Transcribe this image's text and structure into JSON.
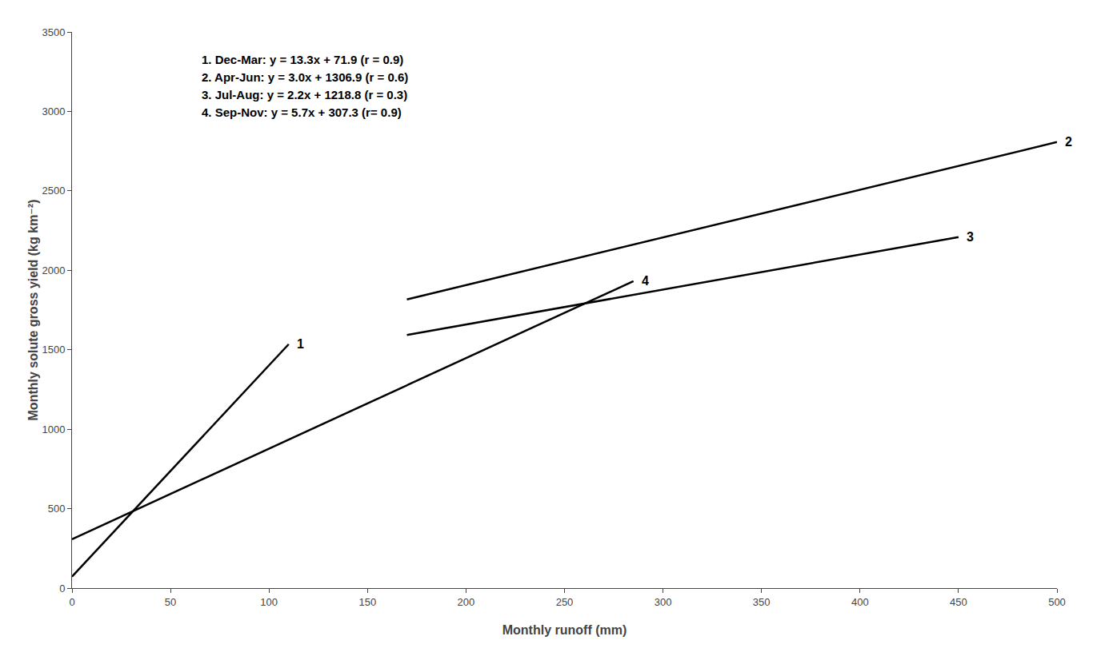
{
  "chart_data": {
    "type": "line",
    "xlabel": "Monthly runoff (mm)",
    "ylabel": "Monthly solute gross yield (kg km⁻²)",
    "series": [
      {
        "name": "1",
        "color": "#000000",
        "x": [
          0,
          110
        ],
        "values": [
          71.9,
          1534.9
        ]
      },
      {
        "name": "2",
        "color": "#000000",
        "x": [
          170,
          500
        ],
        "values": [
          1816.9,
          2806.9
        ]
      },
      {
        "name": "3",
        "color": "#000000",
        "x": [
          170,
          450
        ],
        "values": [
          1592.8,
          2208.8
        ]
      },
      {
        "name": "4",
        "color": "#000000",
        "x": [
          0,
          285
        ],
        "values": [
          307.3,
          1931.8
        ]
      }
    ],
    "annotations": [
      "1. Dec-Mar: y = 13.3x + 71.9 (r = 0.9)",
      "2. Apr-Jun: y = 3.0x + 1306.9 (r = 0.6)",
      "3. Jul-Aug: y = 2.2x + 1218.8 (r = 0.3)",
      "4. Sep-Nov: y = 5.7x + 307.3 (r= 0.9)"
    ],
    "xlim": [
      0,
      500
    ],
    "ylim": [
      0,
      3500
    ],
    "xticks": [
      0,
      50,
      100,
      150,
      200,
      250,
      300,
      350,
      400,
      450,
      500
    ],
    "yticks": [
      0,
      500,
      1000,
      1500,
      2000,
      2500,
      3000,
      3500
    ],
    "grid": false
  }
}
